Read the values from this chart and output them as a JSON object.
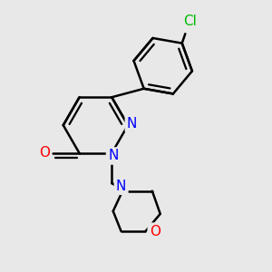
{
  "background_color": "#e8e8e8",
  "bond_color": "#000000",
  "bond_width": 1.8,
  "atom_colors": {
    "N": "#0000ff",
    "O": "#ff0000",
    "Cl": "#00bb00",
    "C": "#000000"
  },
  "font_size": 11
}
